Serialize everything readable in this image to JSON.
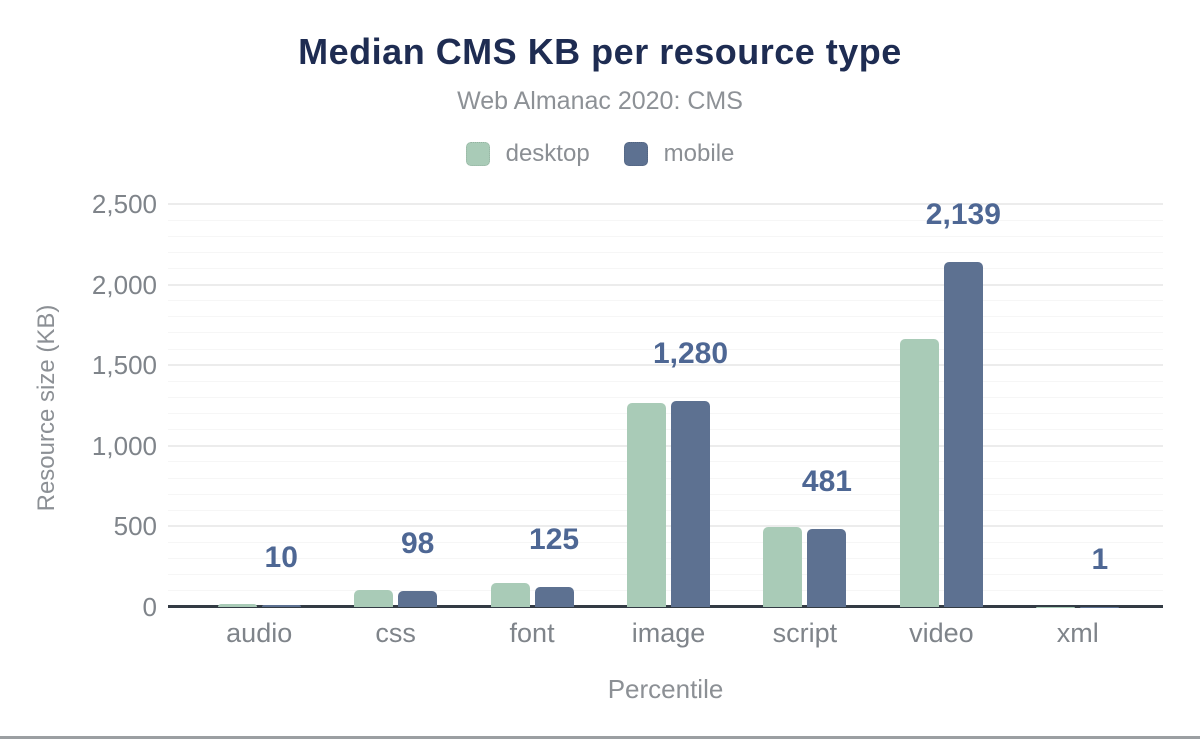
{
  "chart_data": {
    "type": "bar",
    "title": "Median CMS KB per resource type",
    "subtitle": "Web Almanac 2020: CMS",
    "xlabel": "Percentile",
    "ylabel": "Resource size (KB)",
    "categories": [
      "audio",
      "css",
      "font",
      "image",
      "script",
      "video",
      "xml"
    ],
    "series": [
      {
        "name": "desktop",
        "color": "#a9cbb7",
        "values": [
          17,
          106,
          152,
          1266,
          497,
          1660,
          1
        ]
      },
      {
        "name": "mobile",
        "color": "#5d7191",
        "values": [
          10,
          98,
          125,
          1280,
          481,
          2139,
          1
        ]
      }
    ],
    "data_labels": {
      "series": "mobile",
      "text": [
        "10",
        "98",
        "125",
        "1,280",
        "481",
        "2,139",
        "1"
      ]
    },
    "ylim": [
      0,
      2500
    ],
    "ytick_step": 500,
    "minor_step": 100,
    "yticks": [
      "0",
      "500",
      "1,000",
      "1,500",
      "2,000",
      "2,500"
    ],
    "legend_position": "top",
    "grid": true,
    "colors": {
      "title": "#1e2c52",
      "subtitle": "#8d9196",
      "data_label": "#4e6794",
      "axis_text": "#7f848a",
      "baseline": "#333b44"
    }
  }
}
